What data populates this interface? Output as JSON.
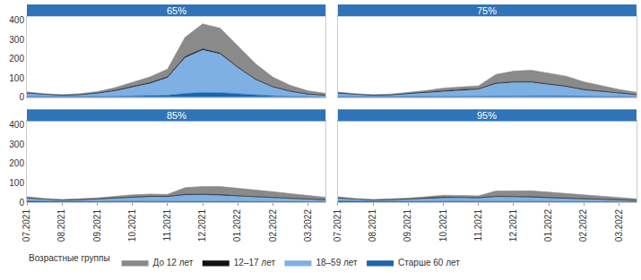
{
  "chart_data": {
    "type": "area",
    "stacked": true,
    "grid": false,
    "legend": "bottom",
    "legend_title": "Возрастные группы",
    "categories": [
      "07.2021",
      null,
      "08.2021",
      null,
      "09.2021",
      null,
      "10.2021",
      null,
      "11.2021",
      null,
      "12.2021",
      null,
      "01.2022",
      null,
      "02.2022",
      null,
      "03.2022",
      null
    ],
    "ylim": [
      0,
      420
    ],
    "yticks": [
      0,
      100,
      200,
      300,
      400
    ],
    "panels": [
      {
        "title": "65%",
        "series": [
          {
            "name": "До 12 лет",
            "color": "#8a8a8a",
            "values": [
              6,
              4,
              3,
              5,
              8,
              14,
              22,
              30,
              40,
              100,
              130,
              130,
              110,
              80,
              50,
              30,
              17,
              10
            ]
          },
          {
            "name": "12–17 лет",
            "color": "#111111",
            "values": [
              2,
              1,
              1,
              1,
              2,
              3,
              4,
              5,
              5,
              6,
              6,
              5,
              4,
              3,
              2,
              2,
              1,
              1
            ]
          },
          {
            "name": "18–59 лет",
            "color": "#7fb0e3",
            "values": [
              15,
              10,
              7,
              10,
              16,
              28,
              45,
              62,
              90,
              185,
              220,
              200,
              135,
              80,
              45,
              25,
              13,
              8
            ]
          },
          {
            "name": "Старше 60 лет",
            "color": "#1c64ad",
            "values": [
              5,
              4,
              3,
              3,
              4,
              5,
              7,
              9,
              11,
              20,
              25,
              24,
              18,
              12,
              8,
              5,
              3,
              2
            ]
          }
        ]
      },
      {
        "title": "75%",
        "series": [
          {
            "name": "До 12 лет",
            "color": "#8a8a8a",
            "values": [
              6,
              4,
              3,
              4,
              6,
              9,
              13,
              15,
              16,
              45,
              55,
              60,
              58,
              52,
              40,
              30,
              20,
              12
            ]
          },
          {
            "name": "12–17 лет",
            "color": "#111111",
            "values": [
              2,
              1,
              1,
              1,
              2,
              2,
              3,
              3,
              3,
              4,
              4,
              4,
              3,
              3,
              3,
              2,
              2,
              1
            ]
          },
          {
            "name": "18–59 лет",
            "color": "#7fb0e3",
            "values": [
              15,
              10,
              7,
              9,
              14,
              20,
              27,
              32,
              35,
              62,
              68,
              68,
              58,
              48,
              32,
              24,
              15,
              10
            ]
          },
          {
            "name": "Старше 60 лет",
            "color": "#1c64ad",
            "values": [
              5,
              4,
              3,
              3,
              4,
              4,
              5,
              5,
              6,
              8,
              9,
              9,
              8,
              7,
              6,
              5,
              4,
              3
            ]
          }
        ]
      },
      {
        "title": "85%",
        "series": [
          {
            "name": "До 12 лет",
            "color": "#8a8a8a",
            "values": [
              6,
              4,
              3,
              4,
              5,
              7,
              10,
              12,
              10,
              35,
              40,
              42,
              40,
              35,
              30,
              24,
              18,
              13
            ]
          },
          {
            "name": "12–17 лет",
            "color": "#111111",
            "values": [
              2,
              1,
              1,
              1,
              1,
              2,
              2,
              2,
              2,
              3,
              3,
              3,
              2,
              2,
              2,
              2,
              1,
              1
            ]
          },
          {
            "name": "18–59 лет",
            "color": "#7fb0e3",
            "values": [
              15,
              10,
              7,
              9,
              13,
              17,
              22,
              24,
              24,
              32,
              33,
              31,
              27,
              23,
              19,
              15,
              12,
              9
            ]
          },
          {
            "name": "Старше 60 лет",
            "color": "#1c64ad",
            "values": [
              5,
              4,
              3,
              3,
              3,
              4,
              4,
              4,
              4,
              5,
              5,
              5,
              4,
              4,
              3,
              3,
              3,
              2
            ]
          }
        ]
      },
      {
        "title": "95%",
        "series": [
          {
            "name": "До 12 лет",
            "color": "#8a8a8a",
            "values": [
              6,
              4,
              3,
              4,
              5,
              7,
              10,
              9,
              10,
              28,
              30,
              31,
              28,
              24,
              20,
              16,
              12,
              8
            ]
          },
          {
            "name": "12–17 лет",
            "color": "#111111",
            "values": [
              2,
              1,
              1,
              1,
              1,
              2,
              2,
              2,
              2,
              2,
              2,
              2,
              2,
              2,
              1,
              1,
              1,
              1
            ]
          },
          {
            "name": "18–59 лет",
            "color": "#7fb0e3",
            "values": [
              15,
              10,
              7,
              9,
              12,
              16,
              20,
              20,
              18,
              24,
              24,
              22,
              19,
              16,
              13,
              11,
              8,
              6
            ]
          },
          {
            "name": "Старше 60 лет",
            "color": "#1c64ad",
            "values": [
              5,
              4,
              3,
              3,
              3,
              3,
              4,
              4,
              3,
              4,
              4,
              4,
              3,
              3,
              3,
              2,
              2,
              2
            ]
          }
        ]
      }
    ]
  }
}
